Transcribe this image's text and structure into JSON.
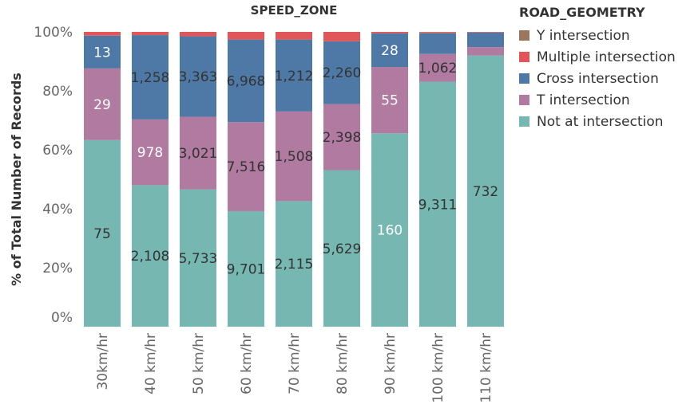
{
  "chart_data": {
    "type": "bar",
    "stacked": true,
    "normalized_percent": true,
    "title": "SPEED_ZONE",
    "ylabel": "% of Total Number of Records",
    "xlabel": "",
    "ylim": [
      0,
      100
    ],
    "yticks": [
      "0%",
      "20%",
      "40%",
      "60%",
      "80%",
      "100%"
    ],
    "categories": [
      "30km/hr",
      "40 km/hr",
      "50 km/hr",
      "60 km/hr",
      "70 km/hr",
      "80 km/hr",
      "90 km/hr",
      "100 km/hr",
      "110 km/hr"
    ],
    "legend_title": "ROAD_GEOMETRY",
    "legend_position": "top-right",
    "grid": false,
    "series": [
      {
        "name": "Not at intersection",
        "color": "#76b7b2",
        "percent": [
          63.3,
          48.0,
          46.6,
          39.2,
          42.6,
          53.1,
          65.6,
          83.1,
          92.0
        ],
        "labels": [
          "75",
          "2,108",
          "5,733",
          "9,701",
          "2,115",
          "5,629",
          "160",
          "9,311",
          "732"
        ],
        "label_color": [
          "#333333",
          "#333333",
          "#333333",
          "#333333",
          "#333333",
          "#333333",
          "#ffffff",
          "#333333",
          "#333333"
        ]
      },
      {
        "name": "T intersection",
        "color": "#b07aa1",
        "percent": [
          24.3,
          22.3,
          24.6,
          30.2,
          30.4,
          22.4,
          22.5,
          9.4,
          2.8
        ],
        "labels": [
          "29",
          "978",
          "3,021",
          "7,516",
          "1,508",
          "2,398",
          "55",
          "1,062",
          ""
        ],
        "label_color": [
          "#ffffff",
          "#ffffff",
          "#333333",
          "#333333",
          "#333333",
          "#333333",
          "#ffffff",
          "#333333",
          "#333333"
        ]
      },
      {
        "name": "Cross intersection",
        "color": "#4e79a7",
        "percent": [
          11.1,
          28.6,
          27.3,
          28.0,
          24.4,
          21.3,
          11.4,
          7.0,
          5.0
        ],
        "labels": [
          "13",
          "1,258",
          "3,363",
          "6,968",
          "1,212",
          "2,260",
          "28",
          "",
          ""
        ],
        "label_color": [
          "#ffffff",
          "#333333",
          "#333333",
          "#333333",
          "#333333",
          "#333333",
          "#ffffff",
          "#333333",
          "#333333"
        ]
      },
      {
        "name": "Multiple intersection",
        "color": "#e15759",
        "percent": [
          1.3,
          1.1,
          1.5,
          2.6,
          2.6,
          3.2,
          0.5,
          0.3,
          0.2
        ],
        "labels": [
          "",
          "",
          "",
          "",
          "",
          "",
          "",
          "",
          ""
        ],
        "label_color": [
          "#333333",
          "#333333",
          "#333333",
          "#333333",
          "#333333",
          "#333333",
          "#333333",
          "#333333",
          "#333333"
        ]
      },
      {
        "name": "Y intersection",
        "color": "#9c755f",
        "percent": [
          0.0,
          0.0,
          0.0,
          0.0,
          0.0,
          0.0,
          0.0,
          0.2,
          0.0
        ],
        "labels": [
          "",
          "",
          "",
          "",
          "",
          "",
          "",
          "",
          ""
        ],
        "label_color": [
          "#333333",
          "#333333",
          "#333333",
          "#333333",
          "#333333",
          "#333333",
          "#333333",
          "#333333",
          "#333333"
        ]
      }
    ],
    "legend_order": [
      "Y intersection",
      "Multiple intersection",
      "Cross intersection",
      "T intersection",
      "Not at intersection"
    ]
  }
}
